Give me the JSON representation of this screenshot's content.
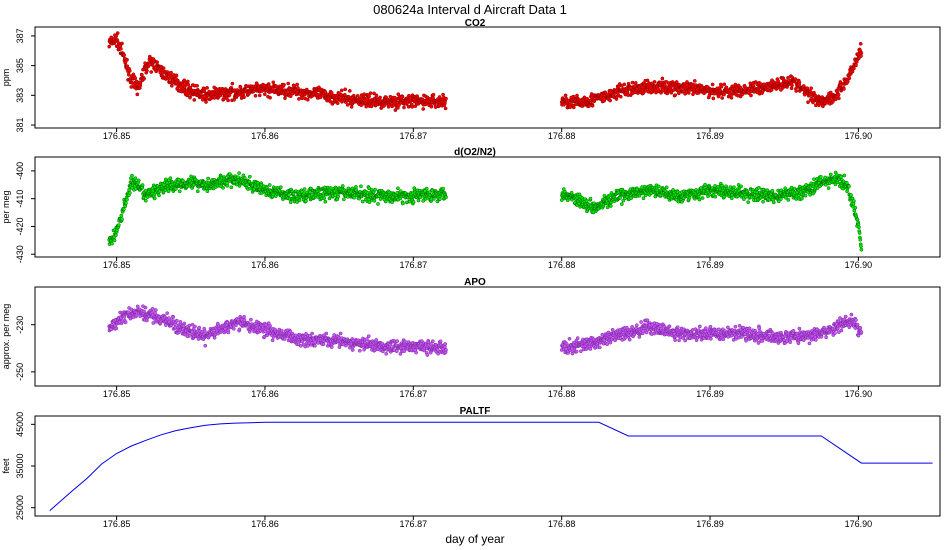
{
  "figure": {
    "title": "080624a   Interval d Aircraft Data 1",
    "xlabel": "day of year"
  },
  "chart_data": [
    {
      "type": "scatter",
      "title": "CO2",
      "ylabel": "ppm",
      "xlim": [
        176.8445,
        176.9055
      ],
      "ylim": [
        380.8,
        387.6
      ],
      "xticks": [
        "176.85",
        "176.86",
        "176.87",
        "176.88",
        "176.89",
        "176.90"
      ],
      "yticks": [
        "381",
        "383",
        "385",
        "387"
      ],
      "color": "#ff0000",
      "segments": [
        {
          "x": [
            176.8495,
            176.85,
            176.8505,
            176.851,
            176.8515,
            176.852,
            176.8525,
            176.853,
            176.854,
            176.855,
            176.856,
            176.858,
            176.86,
            176.862,
            176.864,
            176.866,
            176.868,
            176.87,
            176.8722
          ],
          "y": [
            386.5,
            386.8,
            385.5,
            384.0,
            383.5,
            385.0,
            385.2,
            384.6,
            383.9,
            383.3,
            383.0,
            383.2,
            383.4,
            383.3,
            383.0,
            382.7,
            382.6,
            382.6,
            382.6
          ]
        },
        {
          "x": [
            176.88,
            176.881,
            176.882,
            176.883,
            176.884,
            176.886,
            176.888,
            176.89,
            176.892,
            176.894,
            176.8955,
            176.8965,
            176.8975,
            176.8985,
            176.8992,
            176.8997,
            176.9002
          ],
          "y": [
            382.6,
            382.5,
            382.7,
            382.9,
            383.3,
            383.6,
            383.5,
            383.3,
            383.3,
            383.6,
            384.0,
            383.2,
            382.6,
            383.0,
            384.0,
            385.0,
            386.2
          ]
        }
      ]
    },
    {
      "type": "scatter",
      "title": "d(O2/N2)",
      "ylabel": "per meg",
      "xlim": [
        176.8445,
        176.9055
      ],
      "ylim": [
        -431,
        -395
      ],
      "xticks": [
        "176.85",
        "176.86",
        "176.87",
        "176.88",
        "176.89",
        "176.90"
      ],
      "yticks": [
        "-430",
        "-420",
        "-410",
        "-400"
      ],
      "color": "#00ee00",
      "segments": [
        {
          "x": [
            176.8495,
            176.85,
            176.8505,
            176.851,
            176.8515,
            176.852,
            176.853,
            176.854,
            176.855,
            176.856,
            176.858,
            176.86,
            176.862,
            176.864,
            176.866,
            176.868,
            176.87,
            176.8722
          ],
          "y": [
            -426,
            -422,
            -413,
            -404,
            -406,
            -409,
            -406,
            -405,
            -404,
            -405,
            -403,
            -407,
            -409,
            -408,
            -408,
            -409,
            -409,
            -408
          ]
        },
        {
          "x": [
            176.88,
            176.881,
            176.882,
            176.883,
            176.884,
            176.886,
            176.888,
            176.89,
            176.892,
            176.894,
            176.896,
            176.8975,
            176.8985,
            176.8992,
            176.8997,
            176.9002
          ],
          "y": [
            -408,
            -410,
            -413,
            -411,
            -409,
            -407,
            -409,
            -407,
            -408,
            -409,
            -408,
            -404,
            -403,
            -405,
            -413,
            -426
          ]
        }
      ]
    },
    {
      "type": "scatter",
      "title": "APO",
      "ylabel": "approx. per meg",
      "xlim": [
        176.8445,
        176.9055
      ],
      "ylim": [
        -256,
        -214
      ],
      "xticks": [
        "176.85",
        "176.86",
        "176.87",
        "176.88",
        "176.89",
        "176.90"
      ],
      "yticks": [
        "-250",
        "-230"
      ],
      "color": "#cc55ff",
      "segments": [
        {
          "x": [
            176.8495,
            176.8505,
            176.8515,
            176.8525,
            176.8535,
            176.8545,
            176.856,
            176.858,
            176.86,
            176.862,
            176.864,
            176.866,
            176.868,
            176.87,
            176.8722
          ],
          "y": [
            -232,
            -226,
            -225,
            -226,
            -229,
            -232,
            -235,
            -229,
            -232,
            -236,
            -236,
            -238,
            -239,
            -239,
            -240
          ]
        },
        {
          "x": [
            176.88,
            176.882,
            176.884,
            176.886,
            176.888,
            176.89,
            176.892,
            176.894,
            176.896,
            176.898,
            176.8995,
            176.9002
          ],
          "y": [
            -240,
            -238,
            -234,
            -231,
            -234,
            -234,
            -233,
            -235,
            -235,
            -233,
            -228,
            -233
          ]
        }
      ]
    },
    {
      "type": "line",
      "title": "PALTF",
      "ylabel": "feet",
      "xlim": [
        176.8445,
        176.9055
      ],
      "ylim": [
        23000,
        47000
      ],
      "xticks": [
        "176.85",
        "176.86",
        "176.87",
        "176.88",
        "176.89",
        "176.90"
      ],
      "yticks": [
        "25000",
        "35000",
        "45000"
      ],
      "color": "#0000ee",
      "segments": [
        {
          "x": [
            176.8455,
            176.847,
            176.848,
            176.849,
            176.85,
            176.851,
            176.852,
            176.853,
            176.854,
            176.855,
            176.856,
            176.857,
            176.858,
            176.86,
            176.87,
            176.8825,
            176.8845,
            176.8975,
            176.9002,
            176.905
          ],
          "y": [
            24300,
            29000,
            32000,
            35500,
            38000,
            39800,
            41200,
            42500,
            43500,
            44200,
            44800,
            45100,
            45300,
            45500,
            45500,
            45500,
            42200,
            42200,
            35700,
            35700
          ]
        }
      ]
    }
  ]
}
